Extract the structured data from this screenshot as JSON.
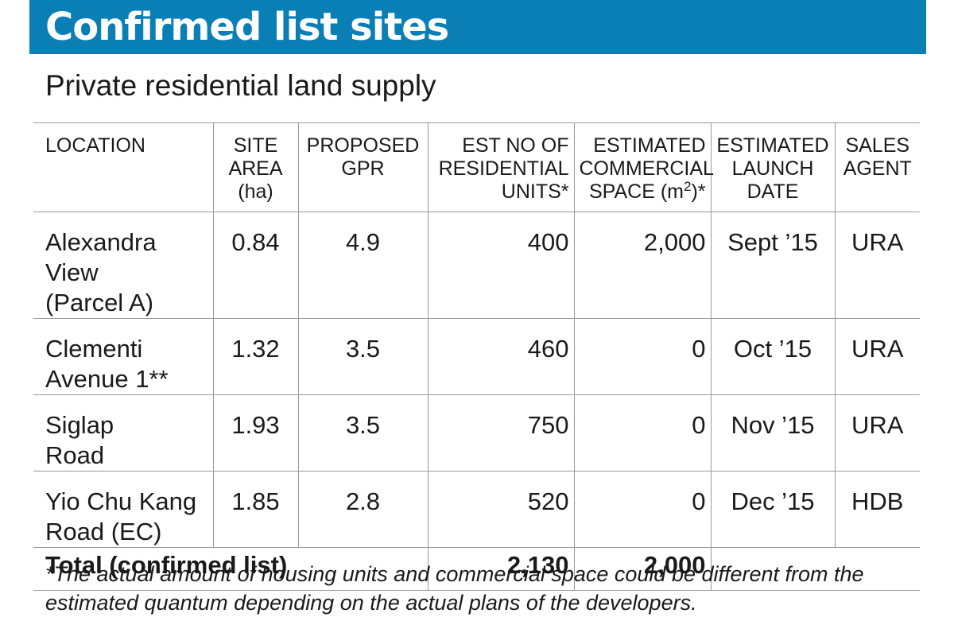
{
  "banner": {
    "title": "Confirmed list sites",
    "color": "#0a7fb5"
  },
  "subtitle": "Private residential land supply",
  "table": {
    "headers": {
      "location": "LOCATION",
      "site_area": [
        "SITE",
        "AREA",
        "(ha)"
      ],
      "gpr": [
        "PROPOSED",
        "GPR"
      ],
      "units": [
        "EST NO OF",
        "RESIDENTIAL",
        "UNITS*"
      ],
      "commercial": [
        "ESTIMATED",
        "COMMERCIAL",
        "SPACE (m",
        "2",
        ")*"
      ],
      "launch": [
        "ESTIMATED",
        "LAUNCH",
        "DATE"
      ],
      "agent": [
        "SALES",
        "AGENT"
      ]
    },
    "rows": [
      {
        "location": [
          "Alexandra",
          "View",
          "(Parcel A)"
        ],
        "area": "0.84",
        "gpr": "4.9",
        "units": "400",
        "commercial": "2,000",
        "launch": "Sept ’15",
        "agent": "URA"
      },
      {
        "location": [
          "Clementi",
          "Avenue 1**"
        ],
        "area": "1.32",
        "gpr": "3.5",
        "units": "460",
        "commercial": "0",
        "launch": "Oct ’15",
        "agent": "URA"
      },
      {
        "location": [
          "Siglap",
          "Road"
        ],
        "area": "1.93",
        "gpr": "3.5",
        "units": "750",
        "commercial": "0",
        "launch": "Nov ’15",
        "agent": "URA"
      },
      {
        "location": [
          "Yio Chu Kang",
          "Road (EC)"
        ],
        "area": "1.85",
        "gpr": "2.8",
        "units": "520",
        "commercial": "0",
        "launch": "Dec ’15",
        "agent": "HDB"
      }
    ],
    "total": {
      "label": "Total (confirmed list)",
      "units": "2,130",
      "commercial": "2,000"
    }
  },
  "footnote": [
    "*The actual amount of housing units and commercial space could be different from the",
    "estimated quantum depending on the actual plans of the developers."
  ]
}
